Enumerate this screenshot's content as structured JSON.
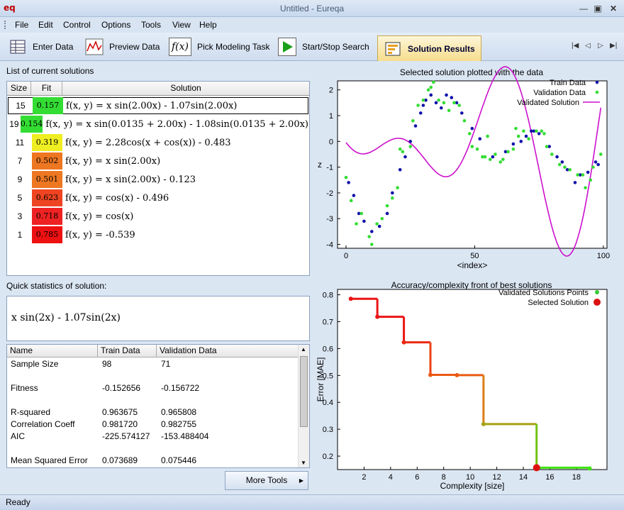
{
  "window": {
    "title": "Untitled - Eureqa",
    "logo": "eq"
  },
  "menu": [
    "File",
    "Edit",
    "Control",
    "Options",
    "Tools",
    "View",
    "Help"
  ],
  "toolbar": {
    "enter_data": "Enter Data",
    "preview_data": "Preview Data",
    "pick_task": "Pick Modeling Task",
    "pick_task_icon": "f(x)",
    "start_stop": "Start/Stop Search",
    "solution_results": "Solution Results"
  },
  "solutions_panel": {
    "label": "List of current solutions",
    "columns": [
      "Size",
      "Fit",
      "Solution"
    ],
    "rows": [
      {
        "size": "15",
        "fit": "0.157",
        "color": "#33dd33",
        "eq": "f(x, y) = x sin(2.00x) - 1.07sin(2.00x)"
      },
      {
        "size": "19",
        "fit": "0.154",
        "color": "#33dd33",
        "eq": "f(x, y) = x sin(0.0135 + 2.00x) - 1.08sin(0.0135 + 2.00x)"
      },
      {
        "size": "11",
        "fit": "0.319",
        "color": "#eeee22",
        "eq": "f(x, y) = 2.28cos(x + cos(x)) - 0.483"
      },
      {
        "size": "7",
        "fit": "0.502",
        "color": "#ee7722",
        "eq": "f(x, y) = x sin(2.00x)"
      },
      {
        "size": "9",
        "fit": "0.501",
        "color": "#ee7722",
        "eq": "f(x, y) = x sin(2.00x) - 0.123"
      },
      {
        "size": "5",
        "fit": "0.623",
        "color": "#ee4422",
        "eq": "f(x, y) = cos(x) - 0.496"
      },
      {
        "size": "3",
        "fit": "0.718",
        "color": "#ee2222",
        "eq": "f(x, y) = cos(x)"
      },
      {
        "size": "1",
        "fit": "0.785",
        "color": "#ee1111",
        "eq": "f(x, y) = -0.539"
      }
    ]
  },
  "quick_stats": {
    "label": "Quick statistics of solution:",
    "expression": "x sin(2x) - 1.07sin(2x)",
    "columns": [
      "Name",
      "Train Data",
      "Validation Data"
    ],
    "rows": [
      {
        "name": "Sample Size",
        "train": "98",
        "val": "71"
      },
      {
        "name": "",
        "train": "",
        "val": ""
      },
      {
        "name": "Fitness",
        "train": "-0.152656",
        "val": "-0.156722"
      },
      {
        "name": "",
        "train": "",
        "val": ""
      },
      {
        "name": "R-squared",
        "train": "0.963675",
        "val": "0.965808"
      },
      {
        "name": "Correlation Coeff",
        "train": "0.981720",
        "val": "0.982755"
      },
      {
        "name": "AIC",
        "train": "-225.574127",
        "val": "-153.488404"
      },
      {
        "name": "",
        "train": "",
        "val": ""
      },
      {
        "name": "Mean Squared Error",
        "train": "0.073689",
        "val": "0.075446"
      }
    ],
    "more_tools": "More Tools"
  },
  "status": "Ready",
  "chart_data": [
    {
      "type": "scatter",
      "title": "Selected solution plotted with the data",
      "xlabel": "<index>",
      "ylabel": "z",
      "xlim": [
        0,
        100
      ],
      "ylim": [
        -4,
        2
      ],
      "xticks": [
        0,
        50,
        100
      ],
      "yticks": [
        -4,
        -3,
        -2,
        -1,
        0,
        1,
        2
      ],
      "legend": [
        "Train Data",
        "Validation Data",
        "Validated Solution"
      ],
      "colors": {
        "train": "#1111aa",
        "validation": "#33dd33",
        "solution": "#cc11cc"
      },
      "series": [
        {
          "name": "Train Data",
          "points": [
            [
              1,
              -1.6
            ],
            [
              3,
              -2.1
            ],
            [
              5,
              -2.8
            ],
            [
              7,
              -3.1
            ],
            [
              10,
              -3.5
            ],
            [
              13,
              -3.3
            ],
            [
              16,
              -2.8
            ],
            [
              18,
              -2.0
            ],
            [
              21,
              -1.1
            ],
            [
              23,
              -0.6
            ],
            [
              25,
              0.0
            ],
            [
              27,
              0.6
            ],
            [
              29,
              1.1
            ],
            [
              30,
              1.4
            ],
            [
              31,
              1.6
            ],
            [
              33,
              1.8
            ],
            [
              35,
              1.5
            ],
            [
              37,
              1.3
            ],
            [
              39,
              1.8
            ],
            [
              41,
              1.7
            ],
            [
              43,
              1.5
            ],
            [
              45,
              1.1
            ],
            [
              49,
              0.5
            ],
            [
              52,
              0.1
            ],
            [
              57,
              -0.6
            ],
            [
              62,
              -0.4
            ],
            [
              65,
              -0.1
            ],
            [
              68,
              0.0
            ],
            [
              70,
              0.2
            ],
            [
              72,
              0.4
            ],
            [
              73,
              0.4
            ],
            [
              75,
              0.3
            ],
            [
              79,
              -0.2
            ],
            [
              82,
              -0.6
            ],
            [
              84,
              -0.8
            ],
            [
              86,
              -1.1
            ],
            [
              89,
              -1.6
            ],
            [
              91,
              -1.3
            ],
            [
              94,
              -1.2
            ],
            [
              97,
              -0.8
            ],
            [
              98,
              -0.9
            ]
          ]
        },
        {
          "name": "Validation Data",
          "points": [
            [
              0,
              -1.4
            ],
            [
              2,
              -2.3
            ],
            [
              4,
              -3.2
            ],
            [
              6,
              -2.8
            ],
            [
              9,
              -3.7
            ],
            [
              10,
              -4.0
            ],
            [
              12,
              -3.2
            ],
            [
              14,
              -3.0
            ],
            [
              16,
              -2.5
            ],
            [
              18,
              -2.2
            ],
            [
              20,
              -1.8
            ],
            [
              21,
              -0.3
            ],
            [
              22,
              -0.4
            ],
            [
              25,
              -0.2
            ],
            [
              26,
              0.8
            ],
            [
              28,
              1.4
            ],
            [
              30,
              1.6
            ],
            [
              32,
              2.0
            ],
            [
              33,
              2.1
            ],
            [
              34,
              2.3
            ],
            [
              36,
              1.6
            ],
            [
              38,
              1.5
            ],
            [
              40,
              1.2
            ],
            [
              42,
              1.5
            ],
            [
              44,
              1.4
            ],
            [
              46,
              0.8
            ],
            [
              48,
              0.3
            ],
            [
              49,
              -0.2
            ],
            [
              51,
              -0.3
            ],
            [
              53,
              -0.6
            ],
            [
              54,
              -0.6
            ],
            [
              55,
              0.2
            ],
            [
              56,
              -0.7
            ],
            [
              58,
              -0.5
            ],
            [
              60,
              -0.8
            ],
            [
              61,
              -0.7
            ],
            [
              63,
              -0.4
            ],
            [
              65,
              -0.3
            ],
            [
              66,
              0.5
            ],
            [
              67,
              0.2
            ],
            [
              69,
              0.4
            ],
            [
              71,
              0.1
            ],
            [
              74,
              0.4
            ],
            [
              76,
              0.4
            ],
            [
              77,
              0.3
            ],
            [
              78,
              -0.2
            ],
            [
              80,
              -0.5
            ],
            [
              83,
              -0.9
            ],
            [
              85,
              -1.0
            ],
            [
              87,
              -1.1
            ],
            [
              90,
              -1.3
            ],
            [
              92,
              -1.3
            ],
            [
              93,
              -1.8
            ],
            [
              95,
              -1.5
            ],
            [
              96,
              -1.0
            ],
            [
              99,
              -0.5
            ]
          ]
        }
      ],
      "solution_curve": "x*sin(2x)-1.07*sin(2x), x = index/15 (approx)"
    },
    {
      "type": "line",
      "title": "Accuracy/complexity front of best solutions",
      "xlabel": "Complexity [size]",
      "ylabel": "Error [MAE]",
      "xlim": [
        0,
        20
      ],
      "ylim": [
        0.15,
        0.82
      ],
      "xticks": [
        2,
        4,
        6,
        8,
        10,
        12,
        14,
        16,
        18
      ],
      "yticks": [
        0.2,
        0.3,
        0.4,
        0.5,
        0.6,
        0.7,
        0.8
      ],
      "legend": [
        "Validated Solutions Points",
        "Selected Solution"
      ],
      "colors": {
        "points": "#33cc33",
        "selected": "#dd1111"
      },
      "points": [
        [
          1,
          0.785
        ],
        [
          3,
          0.718
        ],
        [
          5,
          0.623
        ],
        [
          7,
          0.502
        ],
        [
          9,
          0.501
        ],
        [
          11,
          0.319
        ],
        [
          15,
          0.157
        ],
        [
          19,
          0.154
        ]
      ],
      "selected": [
        15,
        0.157
      ]
    }
  ]
}
